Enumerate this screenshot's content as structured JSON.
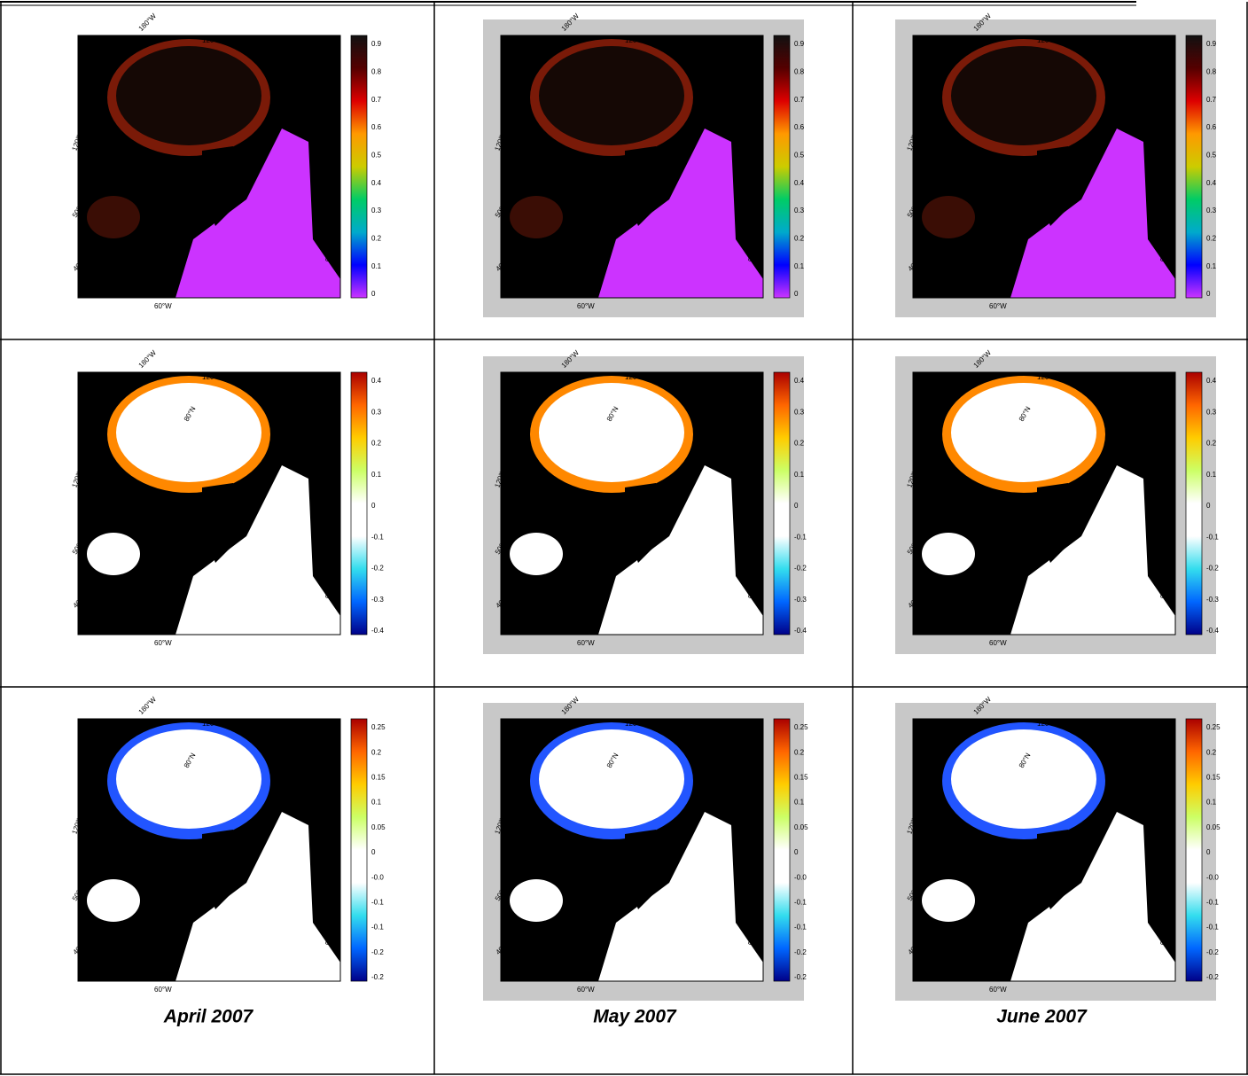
{
  "captions": [
    "April 2007",
    "May 2007",
    "June 2007"
  ],
  "colorbar_labels": [
    [
      "0.9",
      "0.8",
      "0.7",
      "0.6",
      "0.5",
      "0.4",
      "0.3",
      "0.2",
      "0.1",
      "0"
    ],
    [
      "0.4",
      "0.3",
      "0.2",
      "0.1",
      "0",
      "-0.1",
      "-0.2",
      "-0.3",
      "-0.4"
    ],
    [
      "0.25",
      "0.2",
      "0.15",
      "0.1",
      "0.05",
      "0",
      "-0.0",
      "-0.1",
      "-0.1",
      "-0.2",
      "-0.2"
    ]
  ],
  "map_labels": {
    "top_left": "180°W",
    "top": "120°E",
    "right": "60°E",
    "left_upper": "120°W",
    "left_middle": "50°N",
    "left_lower": "40°N",
    "bottom": "60°W",
    "right_lower": "0°",
    "pole": "80°N"
  }
}
